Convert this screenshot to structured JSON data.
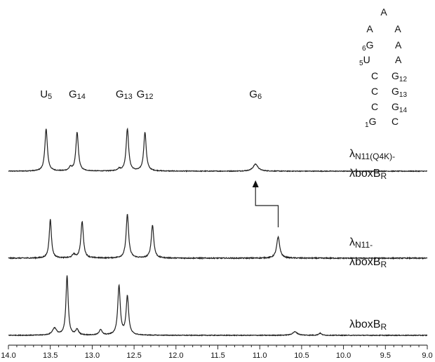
{
  "chart_data": {
    "type": "line",
    "title": "",
    "xlabel": "",
    "ylabel": "",
    "xlim": [
      14.0,
      9.0
    ],
    "x_reversed": true,
    "x_ticks": [
      14.0,
      13.5,
      13.0,
      12.5,
      12.0,
      11.5,
      11.0,
      10.5,
      10.0,
      9.5,
      9.0
    ],
    "x_tick_labels": [
      "14.0",
      "13.5",
      "13.0",
      "12.5",
      "12.0",
      "11.5",
      "11.0",
      "10.5",
      "10.0",
      "9.5",
      "9.0"
    ],
    "peak_labels": [
      {
        "base": "U",
        "sub": "5",
        "ppm": 13.55
      },
      {
        "base": "G",
        "sub": "14",
        "ppm": 13.18
      },
      {
        "base": "G",
        "sub": "13",
        "ppm": 12.62
      },
      {
        "base": "G",
        "sub": "12",
        "ppm": 12.37
      },
      {
        "base": "G",
        "sub": "6",
        "ppm": 11.05
      }
    ],
    "series": [
      {
        "label_lines": [
          [
            {
              "t": "λ"
            },
            {
              "t": "N11(Q4K)-",
              "sub": true
            }
          ],
          [
            {
              "t": "λboxB"
            },
            {
              "t": "R",
              "sub": true
            }
          ]
        ],
        "noise": 0.5,
        "peaks": [
          {
            "ppm": 13.55,
            "h": 60,
            "w": 0.018
          },
          {
            "ppm": 13.26,
            "h": 5,
            "w": 0.02
          },
          {
            "ppm": 13.18,
            "h": 55,
            "w": 0.018
          },
          {
            "ppm": 12.68,
            "h": 3,
            "w": 0.02
          },
          {
            "ppm": 12.58,
            "h": 60,
            "w": 0.018
          },
          {
            "ppm": 12.37,
            "h": 55,
            "w": 0.018
          },
          {
            "ppm": 11.05,
            "h": 10,
            "w": 0.035
          }
        ]
      },
      {
        "label_lines": [
          [
            {
              "t": "λ"
            },
            {
              "t": "N11-",
              "sub": true
            }
          ],
          [
            {
              "t": "λboxB"
            },
            {
              "t": "R",
              "sub": true
            }
          ]
        ],
        "noise": 0.7,
        "peaks": [
          {
            "ppm": 13.5,
            "h": 55,
            "w": 0.016
          },
          {
            "ppm": 13.22,
            "h": 5,
            "w": 0.02
          },
          {
            "ppm": 13.12,
            "h": 52,
            "w": 0.018
          },
          {
            "ppm": 12.58,
            "h": 62,
            "w": 0.018
          },
          {
            "ppm": 12.28,
            "h": 47,
            "w": 0.018
          },
          {
            "ppm": 10.78,
            "h": 30,
            "w": 0.022
          }
        ]
      },
      {
        "label_lines": [
          [
            {
              "t": "λboxB"
            },
            {
              "t": "R",
              "sub": true
            }
          ]
        ],
        "noise": 0.5,
        "peaks": [
          {
            "ppm": 13.45,
            "h": 10,
            "w": 0.03
          },
          {
            "ppm": 13.3,
            "h": 85,
            "w": 0.016
          },
          {
            "ppm": 13.18,
            "h": 8,
            "w": 0.02
          },
          {
            "ppm": 12.9,
            "h": 8,
            "w": 0.02
          },
          {
            "ppm": 12.68,
            "h": 70,
            "w": 0.018
          },
          {
            "ppm": 12.58,
            "h": 55,
            "w": 0.018
          },
          {
            "ppm": 10.58,
            "h": 5,
            "w": 0.035
          },
          {
            "ppm": 10.28,
            "h": 3,
            "w": 0.02
          }
        ]
      }
    ],
    "annotation_arrow": {
      "from_ppm": 10.78,
      "to_ppm": 11.05
    }
  },
  "hairpin": {
    "rows": [
      [
        {
          "t": "A",
          "role": "loop-top"
        }
      ],
      [
        {
          "t": "A",
          "role": "loop-left"
        },
        {
          "t": "A",
          "role": "loop-right"
        }
      ],
      [
        {
          "num": "6",
          "t": "G",
          "role": "left"
        },
        {
          "t": "A",
          "role": "right"
        }
      ],
      [
        {
          "num": "5",
          "t": "U",
          "role": "left"
        },
        {
          "t": "A",
          "role": "right"
        }
      ],
      [
        {
          "t": "C",
          "role": "left"
        },
        {
          "t": "G",
          "sub": "12",
          "role": "right"
        }
      ],
      [
        {
          "t": "C",
          "role": "left"
        },
        {
          "t": "G",
          "sub": "13",
          "role": "right"
        }
      ],
      [
        {
          "t": "C",
          "role": "left"
        },
        {
          "t": "G",
          "sub": "14",
          "role": "right"
        }
      ],
      [
        {
          "num": "1",
          "t": "G",
          "role": "left"
        },
        {
          "t": "C",
          "role": "right"
        }
      ]
    ]
  }
}
